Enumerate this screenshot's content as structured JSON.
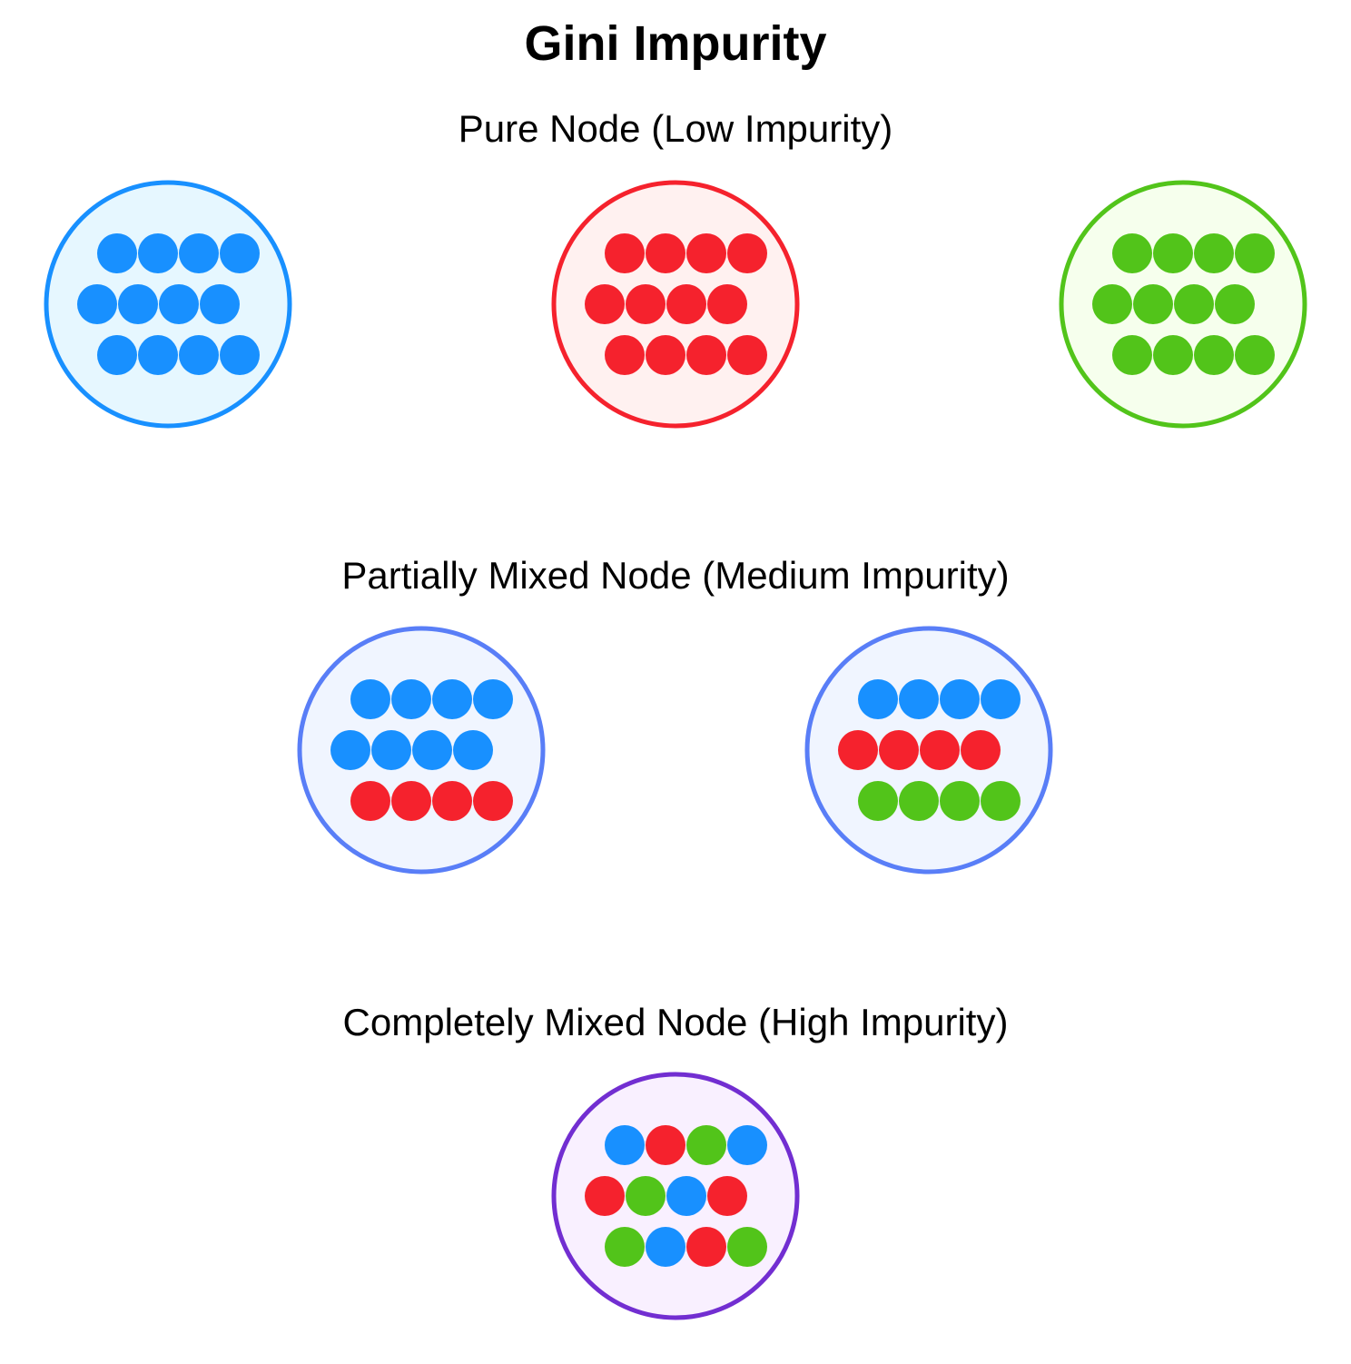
{
  "title": "Gini Impurity",
  "colors": {
    "blue": "#1890ff",
    "red": "#f5222d",
    "green": "#52c41a",
    "mixed_border": "#597ef7",
    "high_border": "#722ed1"
  },
  "sections": [
    {
      "label": "Pure Node (Low Impurity)",
      "nodes": [
        {
          "border": "#1890ff",
          "fill": "#e6f7ff",
          "rows": [
            [
              "blue",
              "blue",
              "blue",
              "blue"
            ],
            [
              "blue",
              "blue",
              "blue",
              "blue"
            ],
            [
              "blue",
              "blue",
              "blue",
              "blue"
            ]
          ]
        },
        {
          "border": "#f5222d",
          "fill": "#fff1f0",
          "rows": [
            [
              "red",
              "red",
              "red",
              "red"
            ],
            [
              "red",
              "red",
              "red",
              "red"
            ],
            [
              "red",
              "red",
              "red",
              "red"
            ]
          ]
        },
        {
          "border": "#52c41a",
          "fill": "#f6ffed",
          "rows": [
            [
              "green",
              "green",
              "green",
              "green"
            ],
            [
              "green",
              "green",
              "green",
              "green"
            ],
            [
              "green",
              "green",
              "green",
              "green"
            ]
          ]
        }
      ]
    },
    {
      "label": "Partially Mixed Node (Medium Impurity)",
      "nodes": [
        {
          "border": "#597ef7",
          "fill": "#f0f5ff",
          "rows": [
            [
              "blue",
              "blue",
              "blue",
              "blue"
            ],
            [
              "blue",
              "blue",
              "blue",
              "blue"
            ],
            [
              "red",
              "red",
              "red",
              "red"
            ]
          ]
        },
        {
          "border": "#597ef7",
          "fill": "#f0f5ff",
          "rows": [
            [
              "blue",
              "blue",
              "blue",
              "blue"
            ],
            [
              "red",
              "red",
              "red",
              "red"
            ],
            [
              "green",
              "green",
              "green",
              "green"
            ]
          ]
        }
      ]
    },
    {
      "label": "Completely Mixed Node (High Impurity)",
      "nodes": [
        {
          "border": "#722ed1",
          "fill": "#f9f0ff",
          "rows": [
            [
              "blue",
              "red",
              "green",
              "blue"
            ],
            [
              "red",
              "green",
              "blue",
              "red"
            ],
            [
              "green",
              "blue",
              "red",
              "green"
            ]
          ]
        }
      ]
    }
  ]
}
